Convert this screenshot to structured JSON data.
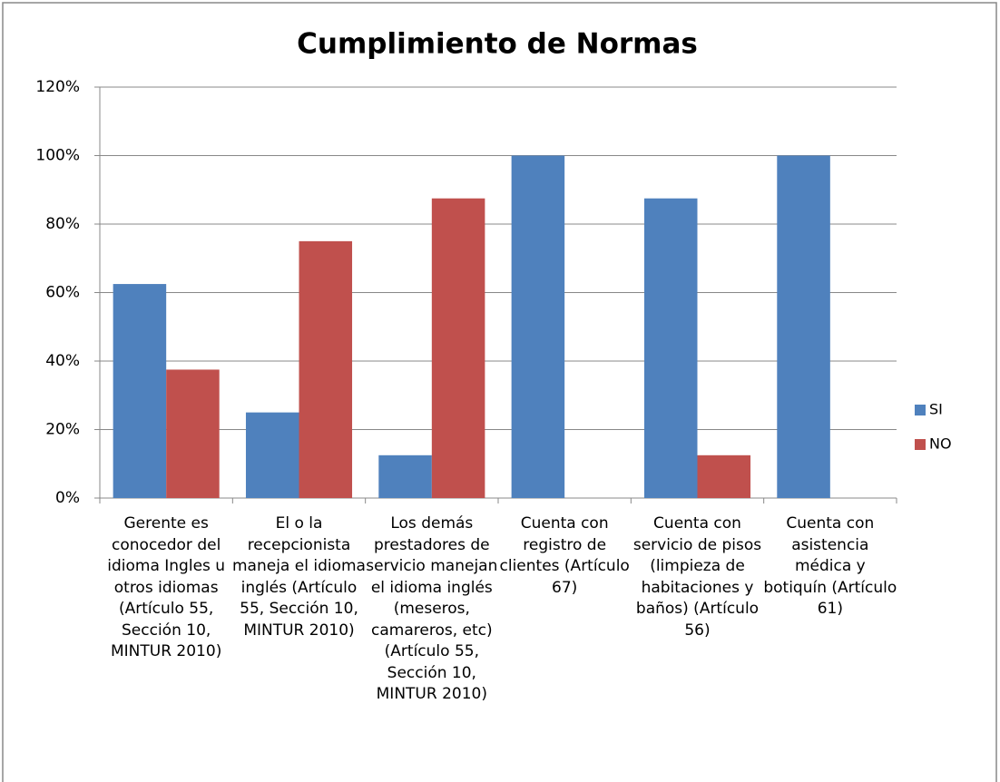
{
  "chart_data": {
    "type": "bar",
    "title": "Cumplimiento de Normas",
    "categories": [
      "Gerente es conocedor del idioma Ingles u otros idiomas (Artículo 55, Sección 10, MINTUR 2010)",
      "El o la recepcionista maneja el idioma inglés (Artículo 55, Sección 10, MINTUR 2010)",
      "Los demás prestadores de servicio manejan el idioma inglés (meseros, camareros, etc) (Artículo 55, Sección 10, MINTUR 2010)",
      "Cuenta con registro de clientes (Artículo 67)",
      "Cuenta con servicio de pisos (limpieza de habitaciones y baños) (Artículo 56)",
      "Cuenta con asistencia médica y botiquín (Artículo 61)"
    ],
    "series": [
      {
        "name": "SI",
        "color": "#4f81bd",
        "values": [
          62.5,
          25,
          12.5,
          100,
          87.5,
          100
        ]
      },
      {
        "name": "NO",
        "color": "#c0504d",
        "values": [
          37.5,
          75,
          87.5,
          0,
          12.5,
          0
        ]
      }
    ],
    "ylim": [
      0,
      120
    ],
    "yticks": [
      {
        "value": 0,
        "label": "0%"
      },
      {
        "value": 20,
        "label": "20%"
      },
      {
        "value": 40,
        "label": "40%"
      },
      {
        "value": 60,
        "label": "60%"
      },
      {
        "value": 80,
        "label": "80%"
      },
      {
        "value": 100,
        "label": "100%"
      },
      {
        "value": 120,
        "label": "120%"
      }
    ],
    "grid": true,
    "legend": "right"
  }
}
